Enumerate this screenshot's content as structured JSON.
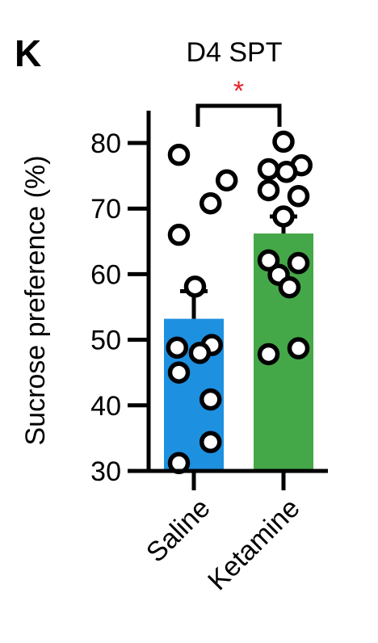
{
  "panel_label": "K",
  "chart_data": {
    "type": "bar",
    "title": "D4 SPT",
    "xlabel": "",
    "ylabel": "Sucrose preference (%)",
    "ylim": [
      30,
      85
    ],
    "yticks": [
      30,
      40,
      50,
      60,
      70,
      80
    ],
    "categories": [
      "Saline",
      "Ketamine"
    ],
    "values": [
      53.2,
      66.2
    ],
    "errors": [
      4.2,
      2.6
    ],
    "bar_colors": [
      "#1e90e0",
      "#45a848"
    ],
    "points": [
      [
        78.2,
        74.3,
        70.8,
        66.0,
        58.1,
        49.2,
        48.8,
        48.0,
        45.0,
        40.9,
        34.4,
        31.2
      ],
      [
        80.2,
        76.6,
        76.0,
        75.6,
        72.8,
        71.9,
        68.8,
        62.1,
        61.7,
        59.9,
        58.0,
        48.7,
        47.8
      ]
    ],
    "point_offsets": [
      [
        -0.25,
        0.55,
        0.28,
        -0.25,
        0.02,
        0.3,
        -0.28,
        0.1,
        -0.25,
        0.28,
        0.28,
        -0.25
      ],
      [
        0.0,
        0.3,
        -0.25,
        0.05,
        -0.25,
        0.25,
        0.0,
        -0.25,
        0.25,
        -0.08,
        0.1,
        0.25,
        -0.25
      ]
    ],
    "significance": {
      "from": 0,
      "to": 1,
      "label": "*",
      "color": "#e8202a"
    },
    "grid": false,
    "legend": "none"
  }
}
